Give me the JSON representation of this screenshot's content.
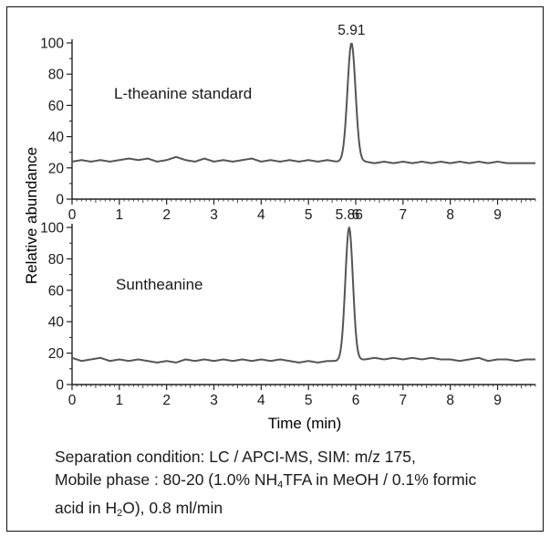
{
  "chart_data": {
    "type": "line",
    "ylabel": "Relative abundance",
    "xlabel": "Time  (min)",
    "xlim": [
      0,
      9.8
    ],
    "x_ticks": [
      "0",
      "1",
      "2",
      "3",
      "4",
      "5",
      "6",
      "7",
      "8",
      "9"
    ],
    "panels": [
      {
        "annotation": "L-theanine standard",
        "peak_label": "5.91",
        "peak_x": 5.91,
        "peak_y": 100,
        "peak_sigma": 0.085,
        "baseline": [
          [
            0.0,
            24
          ],
          [
            0.2,
            25
          ],
          [
            0.4,
            24
          ],
          [
            0.6,
            25
          ],
          [
            0.8,
            24
          ],
          [
            1.0,
            25
          ],
          [
            1.2,
            26
          ],
          [
            1.4,
            25
          ],
          [
            1.6,
            26
          ],
          [
            1.8,
            24
          ],
          [
            2.0,
            25
          ],
          [
            2.2,
            27
          ],
          [
            2.4,
            25
          ],
          [
            2.6,
            24
          ],
          [
            2.8,
            26
          ],
          [
            3.0,
            24
          ],
          [
            3.2,
            25
          ],
          [
            3.4,
            24
          ],
          [
            3.6,
            25
          ],
          [
            3.8,
            26
          ],
          [
            4.0,
            24
          ],
          [
            4.2,
            25
          ],
          [
            4.4,
            24
          ],
          [
            4.6,
            25
          ],
          [
            4.8,
            24
          ],
          [
            5.0,
            25
          ],
          [
            5.2,
            24
          ],
          [
            5.4,
            25
          ],
          [
            5.6,
            24
          ],
          [
            6.2,
            24
          ],
          [
            6.4,
            23
          ],
          [
            6.6,
            24
          ],
          [
            6.8,
            23
          ],
          [
            7.0,
            24
          ],
          [
            7.2,
            23
          ],
          [
            7.4,
            24
          ],
          [
            7.6,
            23
          ],
          [
            7.8,
            24
          ],
          [
            8.0,
            23
          ],
          [
            8.2,
            24
          ],
          [
            8.4,
            23
          ],
          [
            8.6,
            24
          ],
          [
            8.8,
            23
          ],
          [
            9.0,
            24
          ],
          [
            9.2,
            23
          ],
          [
            9.4,
            23
          ],
          [
            9.6,
            23
          ],
          [
            9.8,
            23
          ]
        ],
        "y_ticks": [
          "0",
          "20",
          "40",
          "60",
          "80",
          "100"
        ],
        "ylim": [
          0,
          100
        ]
      },
      {
        "annotation": "Suntheanine",
        "peak_label": "5.86",
        "peak_x": 5.86,
        "peak_y": 100,
        "peak_sigma": 0.08,
        "baseline": [
          [
            0.0,
            17
          ],
          [
            0.2,
            15
          ],
          [
            0.4,
            16
          ],
          [
            0.6,
            17
          ],
          [
            0.8,
            15
          ],
          [
            1.0,
            16
          ],
          [
            1.2,
            15
          ],
          [
            1.4,
            16
          ],
          [
            1.6,
            15
          ],
          [
            1.8,
            14
          ],
          [
            2.0,
            15
          ],
          [
            2.2,
            14
          ],
          [
            2.4,
            16
          ],
          [
            2.6,
            15
          ],
          [
            2.8,
            16
          ],
          [
            3.0,
            15
          ],
          [
            3.2,
            16
          ],
          [
            3.4,
            15
          ],
          [
            3.6,
            16
          ],
          [
            3.8,
            15
          ],
          [
            4.0,
            16
          ],
          [
            4.2,
            15
          ],
          [
            4.4,
            16
          ],
          [
            4.6,
            15
          ],
          [
            4.8,
            14
          ],
          [
            5.0,
            15
          ],
          [
            5.2,
            14
          ],
          [
            5.4,
            15
          ],
          [
            5.6,
            15
          ],
          [
            6.2,
            16
          ],
          [
            6.4,
            17
          ],
          [
            6.6,
            16
          ],
          [
            6.8,
            17
          ],
          [
            7.0,
            16
          ],
          [
            7.2,
            17
          ],
          [
            7.4,
            16
          ],
          [
            7.6,
            17
          ],
          [
            7.8,
            16
          ],
          [
            8.0,
            16
          ],
          [
            8.2,
            15
          ],
          [
            8.4,
            16
          ],
          [
            8.6,
            17
          ],
          [
            8.8,
            15
          ],
          [
            9.0,
            16
          ],
          [
            9.2,
            16
          ],
          [
            9.4,
            15
          ],
          [
            9.6,
            16
          ],
          [
            9.8,
            16
          ]
        ],
        "y_ticks": [
          "0",
          "20",
          "40",
          "60",
          "80",
          "100"
        ],
        "ylim": [
          0,
          100
        ]
      }
    ]
  },
  "caption": {
    "line1": "Separation condition: LC / APCI-MS, SIM: m/z 175,",
    "line2_a": "Mobile phase : 80-20 (1.0% NH",
    "line2_sub": "4",
    "line2_b": "TFA in MeOH / 0.1% formic",
    "line3_a": "acid in H",
    "line3_sub": "2",
    "line3_b": "O), 0.8 ml/min"
  },
  "colors": {
    "trace": "#555555",
    "axis": "#222222",
    "text": "#1a1a1a"
  }
}
